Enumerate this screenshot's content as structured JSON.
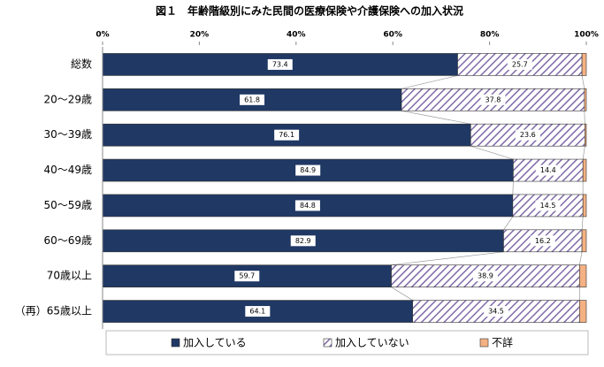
{
  "chart_data": {
    "type": "stacked-bar-horizontal",
    "title": "図１　年齢階級別にみた民間の医療保険や介護保険への加入状況",
    "categories": [
      "総数",
      "20～29歳",
      "30～39歳",
      "40～49歳",
      "50～59歳",
      "60～69歳",
      "70歳以上",
      "（再）65歳以上"
    ],
    "series": [
      {
        "name": "加入している",
        "color": "#203864",
        "values": [
          73.4,
          61.8,
          76.1,
          84.9,
          84.8,
          82.9,
          59.7,
          64.1
        ]
      },
      {
        "name": "加入していない",
        "color": "#7f6aa8",
        "values": [
          25.7,
          37.8,
          23.6,
          14.4,
          14.5,
          16.2,
          38.9,
          34.5
        ]
      },
      {
        "name": "不詳",
        "color": "#f4b183",
        "values": [
          0.9,
          0.4,
          0.3,
          0.7,
          0.7,
          0.9,
          1.4,
          1.4
        ]
      }
    ],
    "xlim": [
      0,
      100
    ],
    "xticks": [
      {
        "value": 0,
        "label": "0%"
      },
      {
        "value": 20,
        "label": "20%"
      },
      {
        "value": 40,
        "label": "40%"
      },
      {
        "value": 60,
        "label": "60%"
      },
      {
        "value": 80,
        "label": "80%"
      },
      {
        "value": 100,
        "label": "100%"
      }
    ],
    "grid": false,
    "legend": "bottom"
  }
}
